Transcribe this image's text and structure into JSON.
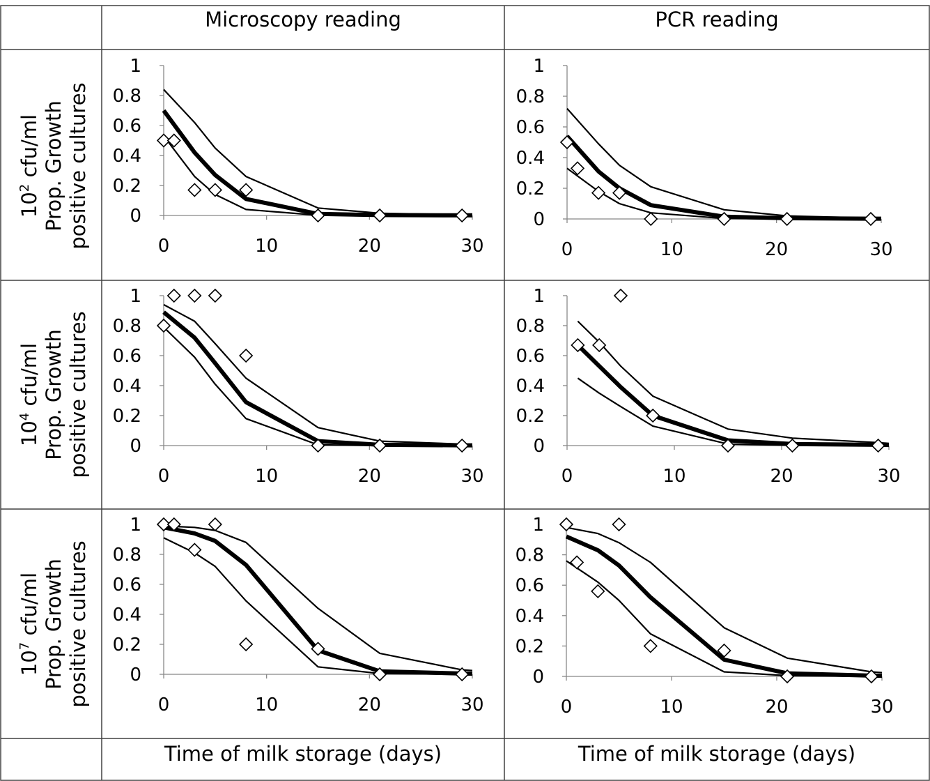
{
  "columns": [
    "Microscopy reading",
    "PCR reading"
  ],
  "x_axis_label": "Time of milk storage (days)",
  "rows": [
    {
      "concentration_base": "10",
      "concentration_exp": "2",
      "concentration_suffix": " cfu/ml",
      "ylabel_line1": "Prop. Growth",
      "ylabel_line2": "positive cultures"
    },
    {
      "concentration_base": "10",
      "concentration_exp": "4",
      "concentration_suffix": " cfu/ml",
      "ylabel_line1": "Prop. Growth",
      "ylabel_line2": "positive cultures"
    },
    {
      "concentration_base": "10",
      "concentration_exp": "7",
      "concentration_suffix": " cfu/ml",
      "ylabel_line1": "Prop. Growth",
      "ylabel_line2": "positive cultures"
    }
  ],
  "colors": {
    "line": "#000000",
    "marker_stroke": "#000000",
    "marker_fill": "#ffffff",
    "border": "#404040"
  },
  "chart_data": [
    {
      "type": "line",
      "panel": "row1-microscopy",
      "xlim": [
        0,
        30
      ],
      "ylim": [
        0,
        1
      ],
      "xticks": [
        "0",
        "10",
        "20",
        "30"
      ],
      "yticks": [
        "0",
        "0.2",
        "0.4",
        "0.6",
        "0.8",
        "1"
      ],
      "fit_x": [
        0,
        3,
        5,
        8,
        15,
        21,
        29,
        30
      ],
      "fit": [
        0.7,
        0.42,
        0.27,
        0.11,
        0.01,
        0.003,
        0.001,
        0.001
      ],
      "upper": [
        0.84,
        0.62,
        0.45,
        0.26,
        0.05,
        0.015,
        0.005,
        0.004
      ],
      "lower": [
        0.53,
        0.26,
        0.14,
        0.04,
        0.002,
        0.0,
        0.0,
        0.0
      ],
      "observed": [
        {
          "x": 0,
          "y": 0.5
        },
        {
          "x": 1,
          "y": 0.5
        },
        {
          "x": 3,
          "y": 0.17
        },
        {
          "x": 5,
          "y": 0.17
        },
        {
          "x": 8,
          "y": 0.17
        },
        {
          "x": 15,
          "y": 0.0
        },
        {
          "x": 21,
          "y": 0.0
        },
        {
          "x": 29,
          "y": 0.0
        }
      ]
    },
    {
      "type": "line",
      "panel": "row1-pcr",
      "xlim": [
        0,
        30
      ],
      "ylim": [
        0,
        1
      ],
      "xticks": [
        "0",
        "10",
        "20",
        "30"
      ],
      "yticks": [
        "0",
        "0.2",
        "0.4",
        "0.6",
        "0.8",
        "1"
      ],
      "fit_x": [
        0,
        3,
        5,
        8,
        15,
        21,
        29,
        30
      ],
      "fit": [
        0.54,
        0.31,
        0.2,
        0.09,
        0.015,
        0.005,
        0.002,
        0.002
      ],
      "upper": [
        0.72,
        0.49,
        0.35,
        0.21,
        0.06,
        0.02,
        0.006,
        0.005
      ],
      "lower": [
        0.33,
        0.18,
        0.1,
        0.04,
        0.003,
        0.0,
        0.0,
        0.0
      ],
      "observed": [
        {
          "x": 0,
          "y": 0.5
        },
        {
          "x": 1,
          "y": 0.33
        },
        {
          "x": 3,
          "y": 0.17
        },
        {
          "x": 5,
          "y": 0.17
        },
        {
          "x": 8,
          "y": 0.0
        },
        {
          "x": 15,
          "y": 0.0
        },
        {
          "x": 21,
          "y": 0.0
        },
        {
          "x": 29,
          "y": 0.0
        }
      ]
    },
    {
      "type": "line",
      "panel": "row2-microscopy",
      "xlim": [
        0,
        30
      ],
      "ylim": [
        0,
        1
      ],
      "xticks": [
        "0",
        "10",
        "20",
        "30"
      ],
      "yticks": [
        "0",
        "0.2",
        "0.4",
        "0.6",
        "0.8",
        "1"
      ],
      "fit_x": [
        0,
        3,
        5,
        8,
        15,
        21,
        29,
        30
      ],
      "fit": [
        0.89,
        0.72,
        0.55,
        0.29,
        0.03,
        0.005,
        0.002,
        0.002
      ],
      "upper": [
        0.94,
        0.83,
        0.68,
        0.45,
        0.12,
        0.03,
        0.01,
        0.008
      ],
      "lower": [
        0.79,
        0.59,
        0.41,
        0.18,
        0.005,
        0.0,
        0.0,
        0.0
      ],
      "observed": [
        {
          "x": 0,
          "y": 0.8
        },
        {
          "x": 1,
          "y": 1.0
        },
        {
          "x": 3,
          "y": 1.0
        },
        {
          "x": 5,
          "y": 1.0
        },
        {
          "x": 8,
          "y": 0.6
        },
        {
          "x": 15,
          "y": 0.0
        },
        {
          "x": 21,
          "y": 0.0
        },
        {
          "x": 29,
          "y": 0.0
        }
      ]
    },
    {
      "type": "line",
      "panel": "row2-pcr",
      "xlim": [
        0,
        30
      ],
      "ylim": [
        0,
        1
      ],
      "xticks": [
        "0",
        "10",
        "20",
        "30"
      ],
      "yticks": [
        "0",
        "0.2",
        "0.4",
        "0.6",
        "0.8",
        "1"
      ],
      "fit_x": [
        1,
        3,
        5,
        8,
        15,
        21,
        29,
        30
      ],
      "fit": [
        0.67,
        0.53,
        0.39,
        0.2,
        0.035,
        0.01,
        0.005,
        0.004
      ],
      "upper": [
        0.83,
        0.69,
        0.53,
        0.33,
        0.11,
        0.05,
        0.02,
        0.015
      ],
      "lower": [
        0.45,
        0.35,
        0.26,
        0.13,
        0.01,
        0.002,
        0.0,
        0.0
      ],
      "observed": [
        {
          "x": 1,
          "y": 0.67
        },
        {
          "x": 3,
          "y": 0.67
        },
        {
          "x": 5,
          "y": 1.0
        },
        {
          "x": 8,
          "y": 0.2
        },
        {
          "x": 15,
          "y": 0.0
        },
        {
          "x": 21,
          "y": 0.0
        },
        {
          "x": 29,
          "y": 0.0
        }
      ]
    },
    {
      "type": "line",
      "panel": "row3-microscopy",
      "xlim": [
        0,
        30
      ],
      "ylim": [
        0,
        1
      ],
      "xticks": [
        "0",
        "10",
        "20",
        "30"
      ],
      "yticks": [
        "0",
        "0.2",
        "0.4",
        "0.6",
        "0.8",
        "1"
      ],
      "fit_x": [
        0,
        3,
        5,
        8,
        15,
        21,
        29,
        30
      ],
      "fit": [
        0.98,
        0.94,
        0.89,
        0.73,
        0.16,
        0.02,
        0.005,
        0.004
      ],
      "upper": [
        0.99,
        0.98,
        0.96,
        0.88,
        0.44,
        0.14,
        0.03,
        0.025
      ],
      "lower": [
        0.91,
        0.81,
        0.72,
        0.49,
        0.05,
        0.005,
        0.001,
        0.0
      ],
      "observed": [
        {
          "x": 0,
          "y": 1.0
        },
        {
          "x": 1,
          "y": 1.0
        },
        {
          "x": 3,
          "y": 0.83
        },
        {
          "x": 5,
          "y": 1.0
        },
        {
          "x": 8,
          "y": 0.2
        },
        {
          "x": 15,
          "y": 0.17
        },
        {
          "x": 21,
          "y": 0.0
        },
        {
          "x": 29,
          "y": 0.0
        }
      ]
    },
    {
      "type": "line",
      "panel": "row3-pcr",
      "xlim": [
        0,
        30
      ],
      "ylim": [
        0,
        1
      ],
      "xticks": [
        "0",
        "10",
        "20",
        "30"
      ],
      "yticks": [
        "0",
        "0.2",
        "0.4",
        "0.6",
        "0.8",
        "1"
      ],
      "fit_x": [
        0,
        3,
        5,
        8,
        15,
        21,
        29,
        30
      ],
      "fit": [
        0.92,
        0.83,
        0.73,
        0.52,
        0.11,
        0.02,
        0.005,
        0.004
      ],
      "upper": [
        0.98,
        0.94,
        0.88,
        0.75,
        0.32,
        0.12,
        0.03,
        0.025
      ],
      "lower": [
        0.76,
        0.62,
        0.5,
        0.28,
        0.03,
        0.005,
        0.0,
        0.0
      ],
      "observed": [
        {
          "x": 0,
          "y": 1.0
        },
        {
          "x": 1,
          "y": 0.75
        },
        {
          "x": 3,
          "y": 0.56
        },
        {
          "x": 5,
          "y": 1.0
        },
        {
          "x": 8,
          "y": 0.2
        },
        {
          "x": 15,
          "y": 0.17
        },
        {
          "x": 21,
          "y": 0.0
        },
        {
          "x": 29,
          "y": 0.0
        }
      ]
    }
  ]
}
